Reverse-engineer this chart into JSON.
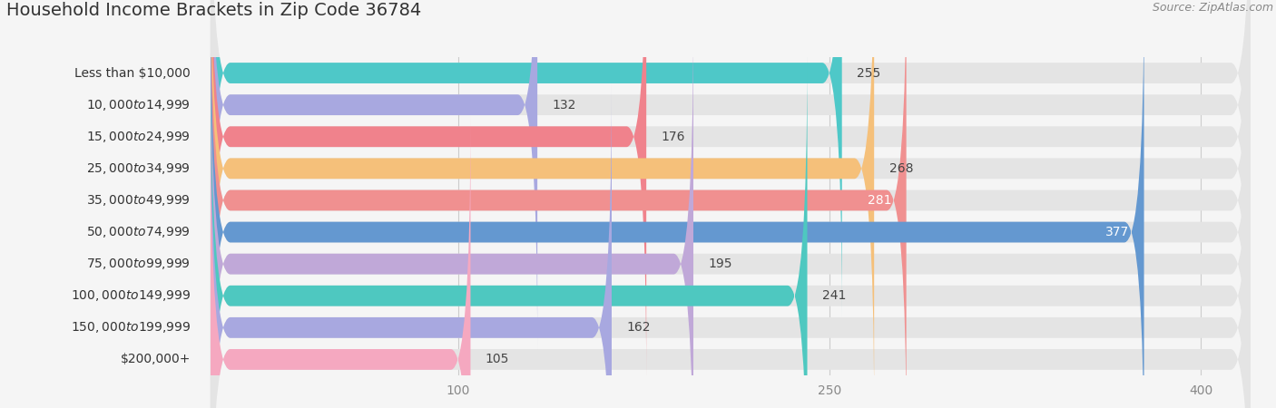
{
  "title": "Household Income Brackets in Zip Code 36784",
  "source": "Source: ZipAtlas.com",
  "categories": [
    "Less than $10,000",
    "$10,000 to $14,999",
    "$15,000 to $24,999",
    "$25,000 to $34,999",
    "$35,000 to $49,999",
    "$50,000 to $74,999",
    "$75,000 to $99,999",
    "$100,000 to $149,999",
    "$150,000 to $199,999",
    "$200,000+"
  ],
  "values": [
    255,
    132,
    176,
    268,
    281,
    377,
    195,
    241,
    162,
    105
  ],
  "bar_colors": [
    "#4EC8C8",
    "#A8A8E0",
    "#F0828C",
    "#F5C07A",
    "#F09090",
    "#6498D0",
    "#C0A8D8",
    "#4EC8C0",
    "#A8A8E0",
    "#F5A8C0"
  ],
  "value_label_colors": [
    "black",
    "black",
    "black",
    "black",
    "white",
    "white",
    "black",
    "black",
    "black",
    "black"
  ],
  "xlim": [
    0,
    420
  ],
  "xticks": [
    100,
    250,
    400
  ],
  "background_color": "#f5f5f5",
  "bar_background_color": "#e4e4e4",
  "title_fontsize": 14,
  "source_fontsize": 9,
  "label_fontsize": 10,
  "value_fontsize": 10,
  "tick_fontsize": 10,
  "bar_height": 0.65,
  "bar_gap": 0.12
}
